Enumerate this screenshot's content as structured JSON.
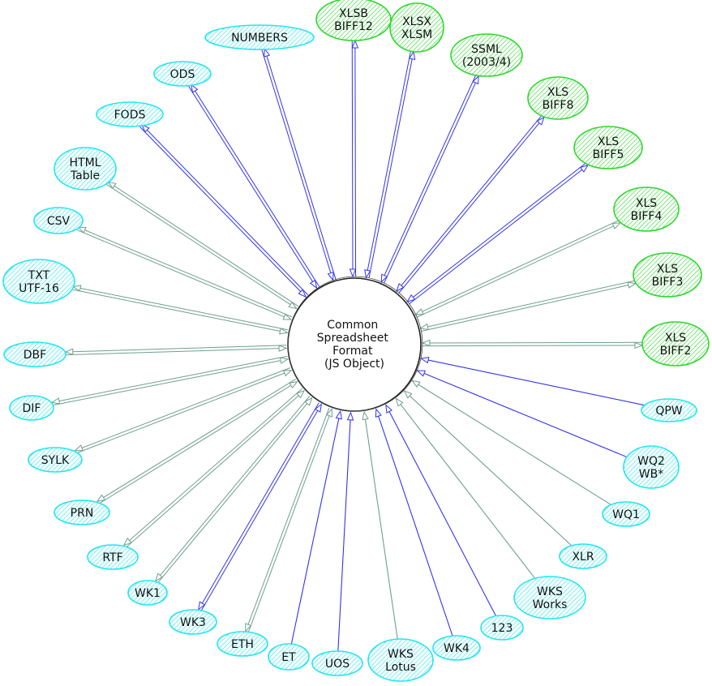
{
  "center": {
    "lines": [
      "Common",
      "Spreadsheet",
      "Format",
      "(JS Object)"
    ]
  },
  "colors": {
    "read_write_format": "#2bd82b",
    "read_only_or_other_format": "#22e6f0",
    "edge_gray": "#6f9f8e",
    "edge_blue": "#3434ee",
    "center_stroke": "#222222"
  },
  "nodes": [
    {
      "lines": [
        "XLSB",
        "BIFF12"
      ],
      "kind": "green",
      "edge": "blue",
      "dir": "both"
    },
    {
      "lines": [
        "XLSX",
        "XLSM"
      ],
      "kind": "green",
      "edge": "blue",
      "dir": "both"
    },
    {
      "lines": [
        "SSML",
        "(2003/4)"
      ],
      "kind": "green",
      "edge": "blue",
      "dir": "both"
    },
    {
      "lines": [
        "XLS",
        "BIFF8"
      ],
      "kind": "green",
      "edge": "blue",
      "dir": "both"
    },
    {
      "lines": [
        "XLS",
        "BIFF5"
      ],
      "kind": "green",
      "edge": "blue",
      "dir": "both"
    },
    {
      "lines": [
        "XLS",
        "BIFF4"
      ],
      "kind": "green",
      "edge": "gray",
      "dir": "both"
    },
    {
      "lines": [
        "XLS",
        "BIFF3"
      ],
      "kind": "green",
      "edge": "gray",
      "dir": "both"
    },
    {
      "lines": [
        "XLS",
        "BIFF2"
      ],
      "kind": "green",
      "edge": "gray",
      "dir": "both"
    },
    {
      "lines": [
        "QPW"
      ],
      "kind": "cyan",
      "edge": "blue",
      "dir": "read"
    },
    {
      "lines": [
        "WQ2",
        "WB*"
      ],
      "kind": "cyan",
      "edge": "blue",
      "dir": "read"
    },
    {
      "lines": [
        "WQ1"
      ],
      "kind": "cyan",
      "edge": "gray",
      "dir": "read"
    },
    {
      "lines": [
        "XLR"
      ],
      "kind": "cyan",
      "edge": "gray",
      "dir": "read"
    },
    {
      "lines": [
        "WKS",
        "Works"
      ],
      "kind": "cyan",
      "edge": "gray",
      "dir": "read"
    },
    {
      "lines": [
        "123"
      ],
      "kind": "cyan",
      "edge": "blue",
      "dir": "read"
    },
    {
      "lines": [
        "WK4"
      ],
      "kind": "cyan",
      "edge": "blue",
      "dir": "read"
    },
    {
      "lines": [
        "WKS",
        "Lotus"
      ],
      "kind": "cyan",
      "edge": "gray",
      "dir": "read"
    },
    {
      "lines": [
        "UOS"
      ],
      "kind": "cyan",
      "edge": "blue",
      "dir": "read"
    },
    {
      "lines": [
        "ET"
      ],
      "kind": "cyan",
      "edge": "blue",
      "dir": "read"
    },
    {
      "lines": [
        "ETH"
      ],
      "kind": "cyan",
      "edge": "gray",
      "dir": "both"
    },
    {
      "lines": [
        "WK3"
      ],
      "kind": "cyan",
      "edge": "blue",
      "dir": "both"
    },
    {
      "lines": [
        "WK1"
      ],
      "kind": "cyan",
      "edge": "gray",
      "dir": "both"
    },
    {
      "lines": [
        "RTF"
      ],
      "kind": "cyan",
      "edge": "gray",
      "dir": "both"
    },
    {
      "lines": [
        "PRN"
      ],
      "kind": "cyan",
      "edge": "gray",
      "dir": "both"
    },
    {
      "lines": [
        "SYLK"
      ],
      "kind": "cyan",
      "edge": "gray",
      "dir": "both"
    },
    {
      "lines": [
        "DIF"
      ],
      "kind": "cyan",
      "edge": "gray",
      "dir": "both"
    },
    {
      "lines": [
        "DBF"
      ],
      "kind": "cyan",
      "edge": "gray",
      "dir": "both"
    },
    {
      "lines": [
        "TXT",
        "UTF-16"
      ],
      "kind": "cyan",
      "edge": "gray",
      "dir": "both"
    },
    {
      "lines": [
        "CSV"
      ],
      "kind": "cyan",
      "edge": "gray",
      "dir": "both"
    },
    {
      "lines": [
        "HTML",
        "Table"
      ],
      "kind": "cyan",
      "edge": "gray",
      "dir": "both"
    },
    {
      "lines": [
        "FODS"
      ],
      "kind": "cyan",
      "edge": "blue",
      "dir": "both"
    },
    {
      "lines": [
        "ODS"
      ],
      "kind": "cyan",
      "edge": "blue",
      "dir": "both"
    },
    {
      "lines": [
        "NUMBERS"
      ],
      "kind": "cyan",
      "edge": "blue",
      "dir": "both"
    }
  ]
}
